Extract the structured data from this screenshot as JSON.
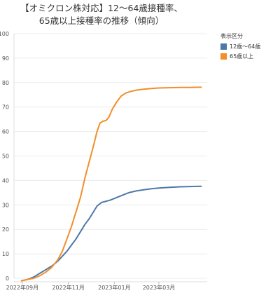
{
  "chart_data": {
    "type": "line",
    "title_line1": "【オミクロン株対応】12～64歳接種率、",
    "title_line2": "65歳以上接種率の推移（傾向）",
    "ylim": [
      0,
      100
    ],
    "yticks": [
      0,
      10,
      20,
      30,
      40,
      50,
      60,
      70,
      80,
      90,
      100
    ],
    "xticks": [
      {
        "label": "2022年09月",
        "x": 1
      },
      {
        "label": "2022年11月",
        "x": 62
      },
      {
        "label": "2023年01月",
        "x": 123
      },
      {
        "label": "2023年03月",
        "x": 182
      }
    ],
    "xlim": [
      -10,
      246
    ],
    "legend": {
      "title": "表示区分",
      "items": [
        {
          "label": "12歳～64歳",
          "color": "#4e79a7"
        },
        {
          "label": "65歳以上",
          "color": "#f28e2b"
        }
      ]
    },
    "series": [
      {
        "name": "12歳～64歳",
        "color": "#4e79a7",
        "x": [
          0,
          8,
          16,
          24,
          32,
          40,
          48,
          54,
          60,
          66,
          72,
          78,
          84,
          90,
          96,
          100,
          106,
          112,
          118,
          126,
          134,
          142,
          152,
          162,
          172,
          182,
          196,
          210,
          224,
          238
        ],
        "y": [
          -1,
          -0.5,
          0.5,
          2,
          3.5,
          5,
          7,
          9,
          11,
          13.5,
          16,
          19,
          22,
          24.5,
          27.5,
          29.5,
          31,
          31.5,
          32,
          33,
          34,
          35,
          35.7,
          36.2,
          36.6,
          36.9,
          37.2,
          37.4,
          37.5,
          37.6
        ]
      },
      {
        "name": "65歳以上",
        "color": "#f28e2b",
        "x": [
          0,
          8,
          16,
          24,
          32,
          40,
          48,
          54,
          60,
          66,
          72,
          78,
          84,
          90,
          96,
          100,
          104,
          108,
          112,
          116,
          120,
          126,
          132,
          138,
          144,
          152,
          162,
          172,
          182,
          196,
          210,
          224,
          238
        ],
        "y": [
          -1,
          -0.5,
          0,
          1,
          2.5,
          4.5,
          7.5,
          11,
          16,
          21,
          27,
          33,
          41,
          48,
          55,
          60,
          63.5,
          64.2,
          64.5,
          66,
          69,
          72,
          74.5,
          75.7,
          76.3,
          76.9,
          77.3,
          77.6,
          77.8,
          77.9,
          78,
          78,
          78.1
        ]
      }
    ]
  }
}
